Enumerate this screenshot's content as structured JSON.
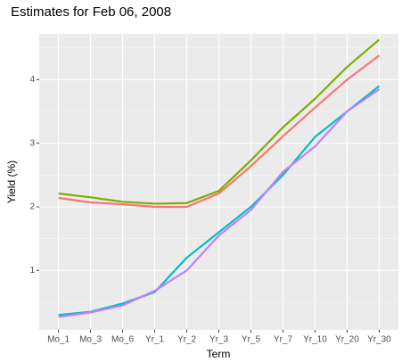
{
  "chart_data": {
    "type": "line",
    "title": "Estimates for Feb 06, 2008",
    "x_label": "Term",
    "y_label": "Yield (%)",
    "categories": [
      "Mo_1",
      "Mo_3",
      "Mo_6",
      "Yr_1",
      "Yr_2",
      "Yr_3",
      "Yr_5",
      "Yr_7",
      "Yr_10",
      "Yr_20",
      "Yr_30"
    ],
    "series": [
      {
        "color": "#F8766D",
        "values": [
          2.14,
          2.07,
          2.04,
          2.0,
          2.0,
          2.21,
          2.64,
          3.11,
          3.56,
          4.0,
          4.38
        ]
      },
      {
        "color": "#7CAE00",
        "values": [
          2.21,
          2.15,
          2.08,
          2.05,
          2.06,
          2.25,
          2.73,
          3.25,
          3.7,
          4.2,
          4.63
        ]
      },
      {
        "color": "#00BFC4",
        "values": [
          0.3,
          0.35,
          0.48,
          0.66,
          1.2,
          1.6,
          2.0,
          2.5,
          3.1,
          3.5,
          3.9
        ]
      },
      {
        "color": "#C77CFF",
        "values": [
          0.27,
          0.34,
          0.45,
          0.68,
          1.0,
          1.55,
          1.95,
          2.55,
          2.95,
          3.5,
          3.85
        ]
      }
    ],
    "ylim": [
      0.065,
      4.72
    ],
    "yticks": [
      1,
      2,
      3,
      4
    ],
    "grid": true
  }
}
